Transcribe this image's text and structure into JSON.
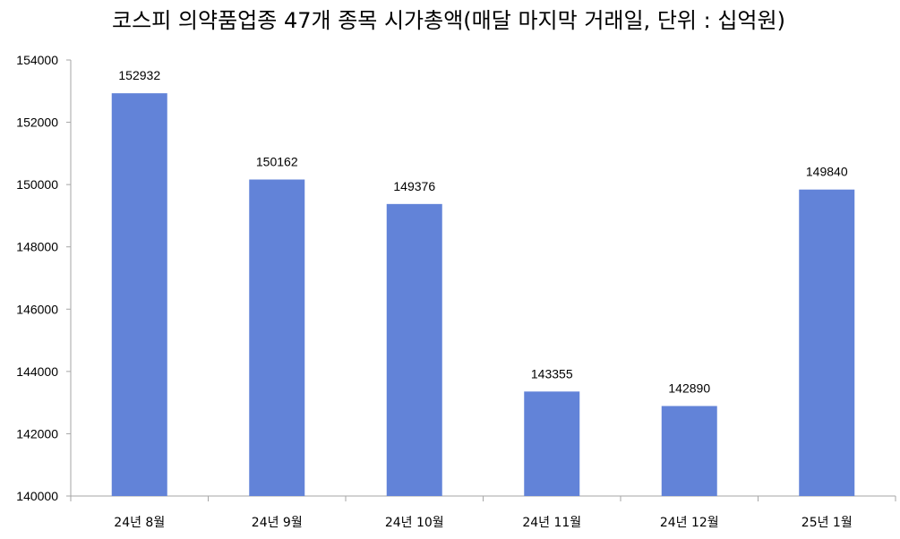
{
  "chart_data": {
    "type": "bar",
    "title": "코스피 의약품업종 47개 종목 시가총액(매달 마지막 거래일, 단위 : 십억원)",
    "xlabel": "",
    "ylabel": "",
    "categories": [
      "24년 8월",
      "24년 9월",
      "24년 10월",
      "24년 11월",
      "24년 12월",
      "25년 1월"
    ],
    "values": [
      152932,
      150162,
      149376,
      143355,
      142890,
      149840
    ],
    "value_labels": [
      "152932",
      "150162",
      "149376",
      "143355",
      "142890",
      "149840"
    ],
    "ylim": [
      140000,
      154000
    ],
    "yticks": [
      140000,
      142000,
      144000,
      146000,
      148000,
      150000,
      152000,
      154000
    ],
    "ytick_labels": [
      "140000",
      "142000",
      "144000",
      "146000",
      "148000",
      "150000",
      "152000",
      "154000"
    ],
    "bar_color": "#6283d8",
    "grid": false,
    "legend": "none"
  }
}
